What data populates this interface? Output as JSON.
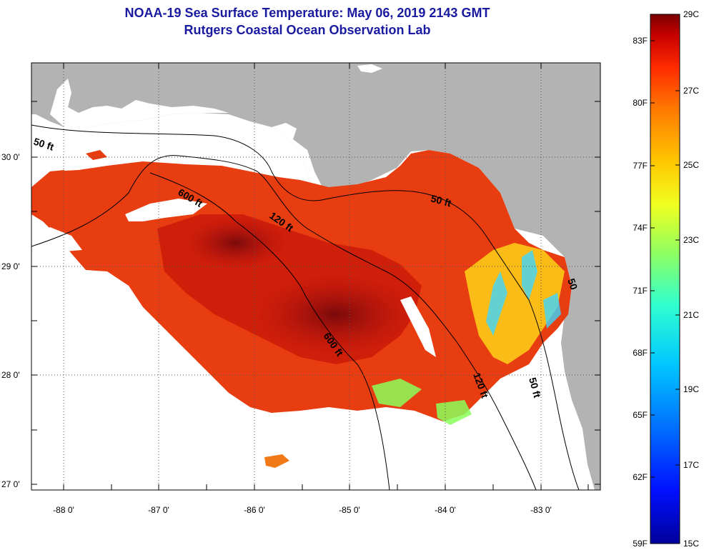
{
  "header": {
    "title": "NOAA-19 Sea Surface Temperature:  May 06, 2019 2143 GMT",
    "subtitle": "Rutgers Coastal Ocean Observation Lab"
  },
  "map": {
    "lat_labels": [
      "30 0'",
      "29 0'",
      "28 0'",
      "27 0'"
    ],
    "lon_labels": [
      "-88 0'",
      "-87 0'",
      "-86 0'",
      "-85 0'",
      "-84 0'",
      "-83 0'"
    ],
    "depth_contours": [
      "50 ft",
      "600 ft",
      "120 ft",
      "50 ft",
      "600 ft",
      "120 ft",
      "50 ft",
      "50"
    ],
    "colors": {
      "land": "#b3b3b3",
      "no_data": "#ffffff",
      "frame": "#000000"
    }
  },
  "colorbar": {
    "fahrenheit_labels": [
      "83F",
      "80F",
      "77F",
      "74F",
      "71F",
      "68F",
      "65F",
      "62F",
      "59F"
    ],
    "celsius_labels": [
      "29C",
      "27C",
      "25C",
      "23C",
      "21C",
      "19C",
      "17C",
      "15C"
    ],
    "colors": [
      "#7a0000",
      "#c80000",
      "#ff2a00",
      "#ff7a00",
      "#ffc800",
      "#f0ff20",
      "#90ff60",
      "#30ffd0",
      "#00c8ff",
      "#0070ff",
      "#0010ff",
      "#00009a"
    ]
  }
}
